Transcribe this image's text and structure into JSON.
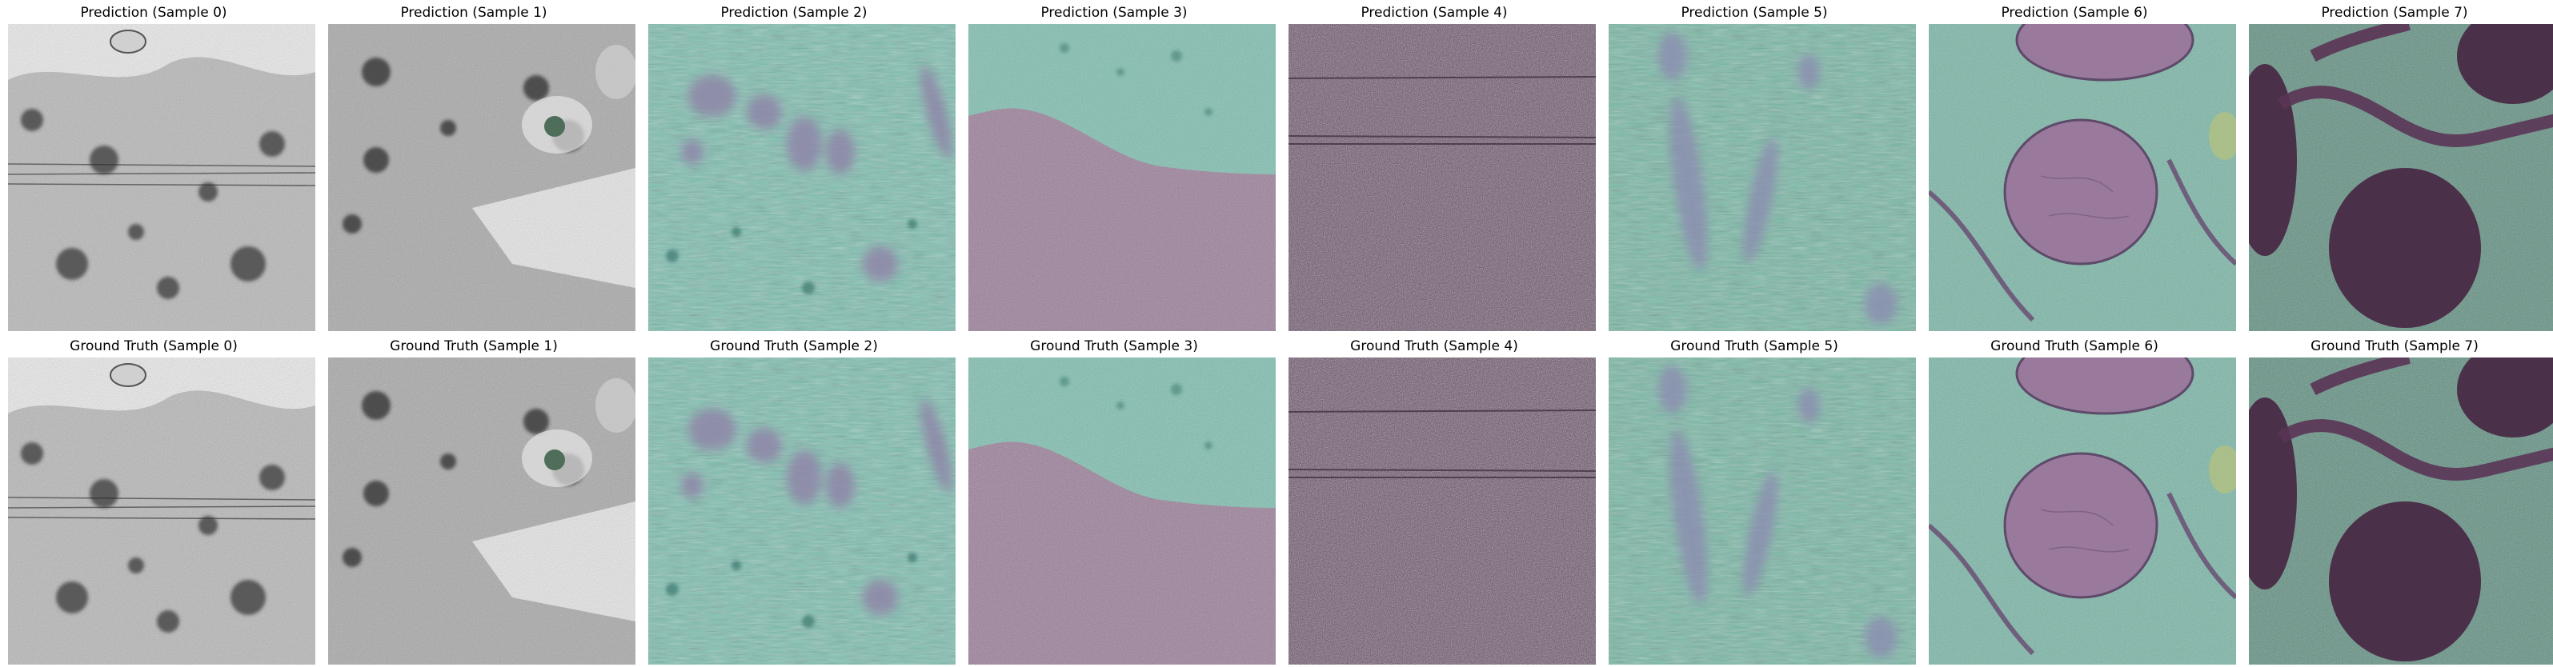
{
  "rows": [
    {
      "name": "prediction",
      "panels": [
        {
          "title": "Prediction (Sample 0)",
          "style": "em-gray-a"
        },
        {
          "title": "Prediction (Sample 1)",
          "style": "em-gray-b"
        },
        {
          "title": "Prediction (Sample 2)",
          "style": "teal-blobs"
        },
        {
          "title": "Prediction (Sample 3)",
          "style": "teal-pink-split"
        },
        {
          "title": "Prediction (Sample 4)",
          "style": "dark-purple-noise"
        },
        {
          "title": "Prediction (Sample 5)",
          "style": "teal-streaks"
        },
        {
          "title": "Prediction (Sample 6)",
          "style": "mito"
        },
        {
          "title": "Prediction (Sample 7)",
          "style": "purple-membranes"
        }
      ]
    },
    {
      "name": "ground-truth",
      "panels": [
        {
          "title": "Ground Truth (Sample 0)",
          "style": "em-gray-a"
        },
        {
          "title": "Ground Truth (Sample 1)",
          "style": "em-gray-b"
        },
        {
          "title": "Ground Truth (Sample 2)",
          "style": "teal-blobs"
        },
        {
          "title": "Ground Truth (Sample 3)",
          "style": "teal-pink-split"
        },
        {
          "title": "Ground Truth (Sample 4)",
          "style": "dark-purple-noise"
        },
        {
          "title": "Ground Truth (Sample 5)",
          "style": "teal-streaks"
        },
        {
          "title": "Ground Truth (Sample 6)",
          "style": "mito"
        },
        {
          "title": "Ground Truth (Sample 7)",
          "style": "purple-membranes"
        }
      ]
    }
  ],
  "colors": {
    "teal": "#7fbfb0",
    "purple": "#8a6f8c",
    "dark_purple": "#4a3148",
    "gray": "#9a9a9a"
  }
}
